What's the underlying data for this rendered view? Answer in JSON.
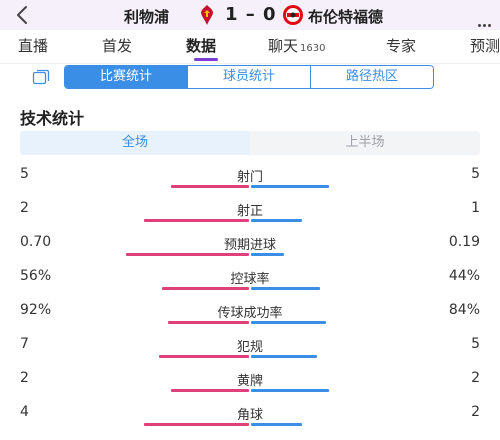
{
  "header": {
    "home_team": "利物浦",
    "score": "1 – 0",
    "away_team": "布伦特福德",
    "home_color": "#c8102e",
    "away_color": "#e30613"
  },
  "tabs": [
    {
      "label": "直播",
      "count": ""
    },
    {
      "label": "首发",
      "count": ""
    },
    {
      "label": "数据",
      "count": "",
      "active": true
    },
    {
      "label": "聊天",
      "count": "1630"
    },
    {
      "label": "专家",
      "count": ""
    },
    {
      "label": "预测",
      "count": ""
    }
  ],
  "segments": [
    "比赛统计",
    "球员统计",
    "路径热区"
  ],
  "section_title": "技术统计",
  "periods": [
    "全场",
    "上半场"
  ],
  "colors": {
    "home_bar": "#e0407a",
    "away_bar": "#3a8ee6",
    "accent": "#7a3fd1"
  },
  "stats": [
    {
      "name": "射门",
      "home": "5",
      "away": "5",
      "home_fill": 0.5,
      "away_fill": 0.5
    },
    {
      "name": "射正",
      "home": "2",
      "away": "1",
      "home_fill": 0.67,
      "away_fill": 0.33
    },
    {
      "name": "预期进球",
      "home": "0.70",
      "away": "0.19",
      "home_fill": 0.79,
      "away_fill": 0.21
    },
    {
      "name": "控球率",
      "home": "56%",
      "away": "44%",
      "home_fill": 0.56,
      "away_fill": 0.44
    },
    {
      "name": "传球成功率",
      "home": "92%",
      "away": "84%",
      "home_fill": 0.52,
      "away_fill": 0.48
    },
    {
      "name": "犯规",
      "home": "7",
      "away": "5",
      "home_fill": 0.58,
      "away_fill": 0.42
    },
    {
      "name": "黄牌",
      "home": "2",
      "away": "2",
      "home_fill": 0.5,
      "away_fill": 0.5
    },
    {
      "name": "角球",
      "home": "4",
      "away": "2",
      "home_fill": 0.67,
      "away_fill": 0.33
    }
  ]
}
